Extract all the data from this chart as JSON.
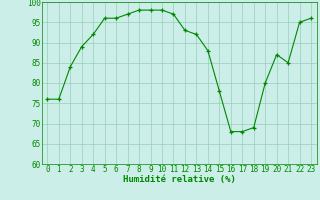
{
  "x": [
    0,
    1,
    2,
    3,
    4,
    5,
    6,
    7,
    8,
    9,
    10,
    11,
    12,
    13,
    14,
    15,
    16,
    17,
    18,
    19,
    20,
    21,
    22,
    23
  ],
  "y": [
    76,
    76,
    84,
    89,
    92,
    96,
    96,
    97,
    98,
    98,
    98,
    97,
    93,
    92,
    88,
    78,
    68,
    68,
    69,
    80,
    87,
    85,
    95,
    96
  ],
  "line_color": "#008800",
  "marker_color": "#008800",
  "bg_color": "#cceee8",
  "grid_color": "#99ccbb",
  "xlabel": "Humidité relative (%)",
  "xlabel_color": "#008800",
  "ylim": [
    60,
    100
  ],
  "yticks": [
    60,
    65,
    70,
    75,
    80,
    85,
    90,
    95,
    100
  ],
  "tick_color": "#008800",
  "axis_color": "#008800",
  "tick_fontsize": 5.5,
  "xlabel_fontsize": 6.5
}
